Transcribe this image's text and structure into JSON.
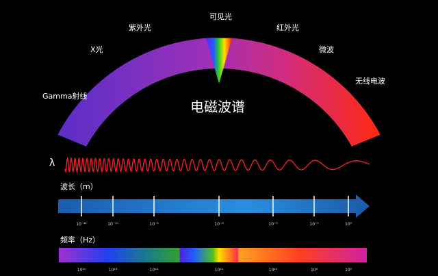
{
  "title": "电磁波谱",
  "bands": [
    "Gamma射线",
    "X光",
    "紫外光",
    "可见光",
    "红外光",
    "微波",
    "无线电波"
  ],
  "lambda_symbol": "λ",
  "wavelength": {
    "label": "波长（m）",
    "ticks": [
      "10⁻¹²",
      "10⁻¹⁰",
      "10⁻⁸",
      "10⁻⁶",
      "10⁻⁵",
      "10⁻²",
      "10³"
    ]
  },
  "frequency": {
    "label": "频率（Hz）",
    "ticks": [
      "10²⁰",
      "10¹⁸",
      "10¹⁶",
      "10¹⁵",
      "10¹²",
      "10⁸",
      "10⁴"
    ]
  },
  "colors": {
    "arc_start": "#5a2fc8",
    "arc_mid": "#c0309a",
    "arc_end": "#ff2a10",
    "wave": "#e0201a",
    "wavelength_bar": "#1d6fc4"
  }
}
